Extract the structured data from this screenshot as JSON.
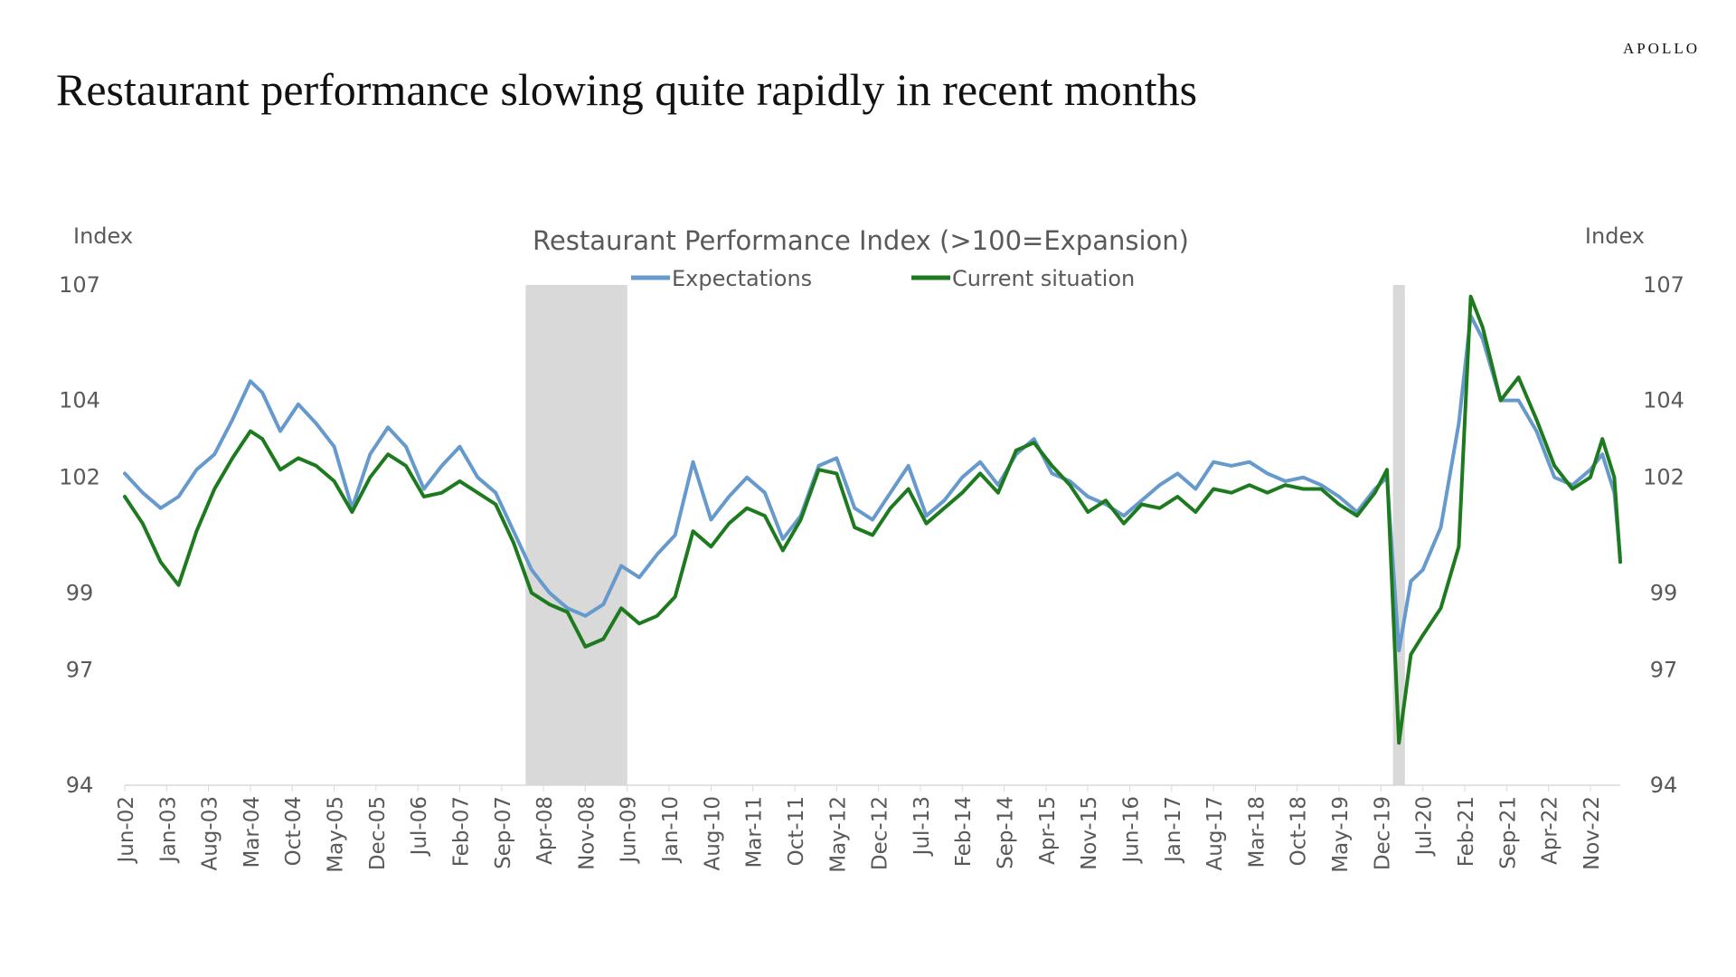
{
  "brand": "APOLLO",
  "headline": "Restaurant performance slowing quite rapidly in recent months",
  "chart_data": {
    "type": "line",
    "title": "Restaurant Performance Index (>100=Expansion)",
    "ylabel_left": "Index",
    "ylabel_right": "Index",
    "ylim": [
      94,
      107
    ],
    "yticks": [
      94,
      97,
      99,
      102,
      104,
      107
    ],
    "x_start": "2002-06",
    "x_end": "2023-04",
    "xtick_labels": [
      "Jun-02",
      "Jan-03",
      "Aug-03",
      "Mar-04",
      "Oct-04",
      "May-05",
      "Dec-05",
      "Jul-06",
      "Feb-07",
      "Sep-07",
      "Apr-08",
      "Nov-08",
      "Jun-09",
      "Jan-10",
      "Aug-10",
      "Mar-11",
      "Oct-11",
      "May-12",
      "Dec-12",
      "Jul-13",
      "Feb-14",
      "Sep-14",
      "Apr-15",
      "Nov-15",
      "Jun-16",
      "Jan-17",
      "Aug-17",
      "Mar-18",
      "Oct-18",
      "May-19",
      "Dec-19",
      "Jul-20",
      "Feb-21",
      "Sep-21",
      "Apr-22",
      "Nov-22"
    ],
    "recessions": [
      [
        "2008-01",
        "2009-06"
      ],
      [
        "2020-02",
        "2020-04"
      ]
    ],
    "colors": {
      "Expectations": "#6699cc",
      "Current situation": "#1e7a1e",
      "recession": "#d9d9d9"
    },
    "legend_position": "top-center",
    "series": [
      {
        "name": "Expectations",
        "values": [
          [
            2002,
            6,
            102.1
          ],
          [
            2002,
            9,
            101.6
          ],
          [
            2002,
            12,
            101.2
          ],
          [
            2003,
            3,
            101.5
          ],
          [
            2003,
            6,
            102.2
          ],
          [
            2003,
            9,
            102.6
          ],
          [
            2003,
            12,
            103.5
          ],
          [
            2004,
            3,
            104.5
          ],
          [
            2004,
            5,
            104.2
          ],
          [
            2004,
            8,
            103.2
          ],
          [
            2004,
            11,
            103.9
          ],
          [
            2005,
            2,
            103.4
          ],
          [
            2005,
            5,
            102.8
          ],
          [
            2005,
            8,
            101.2
          ],
          [
            2005,
            11,
            102.6
          ],
          [
            2006,
            2,
            103.3
          ],
          [
            2006,
            5,
            102.8
          ],
          [
            2006,
            8,
            101.7
          ],
          [
            2006,
            11,
            102.3
          ],
          [
            2007,
            2,
            102.8
          ],
          [
            2007,
            5,
            102.0
          ],
          [
            2007,
            8,
            101.6
          ],
          [
            2007,
            11,
            100.6
          ],
          [
            2008,
            2,
            99.6
          ],
          [
            2008,
            5,
            99.0
          ],
          [
            2008,
            8,
            98.6
          ],
          [
            2008,
            11,
            98.4
          ],
          [
            2009,
            2,
            98.7
          ],
          [
            2009,
            5,
            99.7
          ],
          [
            2009,
            8,
            99.4
          ],
          [
            2009,
            11,
            100.0
          ],
          [
            2010,
            2,
            100.5
          ],
          [
            2010,
            5,
            102.4
          ],
          [
            2010,
            8,
            100.9
          ],
          [
            2010,
            11,
            101.5
          ],
          [
            2011,
            2,
            102.0
          ],
          [
            2011,
            5,
            101.6
          ],
          [
            2011,
            8,
            100.4
          ],
          [
            2011,
            11,
            101.0
          ],
          [
            2012,
            2,
            102.3
          ],
          [
            2012,
            5,
            102.5
          ],
          [
            2012,
            8,
            101.2
          ],
          [
            2012,
            11,
            100.9
          ],
          [
            2013,
            2,
            101.6
          ],
          [
            2013,
            5,
            102.3
          ],
          [
            2013,
            8,
            101.0
          ],
          [
            2013,
            11,
            101.4
          ],
          [
            2014,
            2,
            102.0
          ],
          [
            2014,
            5,
            102.4
          ],
          [
            2014,
            8,
            101.8
          ],
          [
            2014,
            11,
            102.6
          ],
          [
            2015,
            2,
            103.0
          ],
          [
            2015,
            5,
            102.1
          ],
          [
            2015,
            8,
            101.9
          ],
          [
            2015,
            11,
            101.5
          ],
          [
            2016,
            2,
            101.3
          ],
          [
            2016,
            5,
            101.0
          ],
          [
            2016,
            8,
            101.4
          ],
          [
            2016,
            11,
            101.8
          ],
          [
            2017,
            2,
            102.1
          ],
          [
            2017,
            5,
            101.7
          ],
          [
            2017,
            8,
            102.4
          ],
          [
            2017,
            11,
            102.3
          ],
          [
            2018,
            2,
            102.4
          ],
          [
            2018,
            5,
            102.1
          ],
          [
            2018,
            8,
            101.9
          ],
          [
            2018,
            11,
            102.0
          ],
          [
            2019,
            2,
            101.8
          ],
          [
            2019,
            5,
            101.5
          ],
          [
            2019,
            8,
            101.1
          ],
          [
            2019,
            11,
            101.7
          ],
          [
            2020,
            1,
            102.0
          ],
          [
            2020,
            3,
            97.5
          ],
          [
            2020,
            5,
            99.3
          ],
          [
            2020,
            7,
            99.6
          ],
          [
            2020,
            10,
            100.7
          ],
          [
            2021,
            1,
            103.4
          ],
          [
            2021,
            3,
            106.2
          ],
          [
            2021,
            5,
            105.6
          ],
          [
            2021,
            8,
            104.0
          ],
          [
            2021,
            11,
            104.0
          ],
          [
            2022,
            2,
            103.2
          ],
          [
            2022,
            5,
            102.0
          ],
          [
            2022,
            8,
            101.8
          ],
          [
            2022,
            11,
            102.2
          ],
          [
            2023,
            1,
            102.6
          ],
          [
            2023,
            3,
            101.6
          ],
          [
            2023,
            4,
            99.9
          ]
        ]
      },
      {
        "name": "Current situation",
        "values": [
          [
            2002,
            6,
            101.5
          ],
          [
            2002,
            9,
            100.8
          ],
          [
            2002,
            12,
            99.8
          ],
          [
            2003,
            3,
            99.2
          ],
          [
            2003,
            6,
            100.6
          ],
          [
            2003,
            9,
            101.7
          ],
          [
            2003,
            12,
            102.5
          ],
          [
            2004,
            3,
            103.2
          ],
          [
            2004,
            5,
            103.0
          ],
          [
            2004,
            8,
            102.2
          ],
          [
            2004,
            11,
            102.5
          ],
          [
            2005,
            2,
            102.3
          ],
          [
            2005,
            5,
            101.9
          ],
          [
            2005,
            8,
            101.1
          ],
          [
            2005,
            11,
            102.0
          ],
          [
            2006,
            2,
            102.6
          ],
          [
            2006,
            5,
            102.3
          ],
          [
            2006,
            8,
            101.5
          ],
          [
            2006,
            11,
            101.6
          ],
          [
            2007,
            2,
            101.9
          ],
          [
            2007,
            5,
            101.6
          ],
          [
            2007,
            8,
            101.3
          ],
          [
            2007,
            11,
            100.3
          ],
          [
            2008,
            2,
            99.0
          ],
          [
            2008,
            5,
            98.7
          ],
          [
            2008,
            8,
            98.5
          ],
          [
            2008,
            11,
            97.6
          ],
          [
            2009,
            2,
            97.8
          ],
          [
            2009,
            5,
            98.6
          ],
          [
            2009,
            8,
            98.2
          ],
          [
            2009,
            11,
            98.4
          ],
          [
            2010,
            2,
            98.9
          ],
          [
            2010,
            5,
            100.6
          ],
          [
            2010,
            8,
            100.2
          ],
          [
            2010,
            11,
            100.8
          ],
          [
            2011,
            2,
            101.2
          ],
          [
            2011,
            5,
            101.0
          ],
          [
            2011,
            8,
            100.1
          ],
          [
            2011,
            11,
            100.9
          ],
          [
            2012,
            2,
            102.2
          ],
          [
            2012,
            5,
            102.1
          ],
          [
            2012,
            8,
            100.7
          ],
          [
            2012,
            11,
            100.5
          ],
          [
            2013,
            2,
            101.2
          ],
          [
            2013,
            5,
            101.7
          ],
          [
            2013,
            8,
            100.8
          ],
          [
            2013,
            11,
            101.2
          ],
          [
            2014,
            2,
            101.6
          ],
          [
            2014,
            5,
            102.1
          ],
          [
            2014,
            8,
            101.6
          ],
          [
            2014,
            11,
            102.7
          ],
          [
            2015,
            2,
            102.9
          ],
          [
            2015,
            5,
            102.3
          ],
          [
            2015,
            8,
            101.8
          ],
          [
            2015,
            11,
            101.1
          ],
          [
            2016,
            2,
            101.4
          ],
          [
            2016,
            5,
            100.8
          ],
          [
            2016,
            8,
            101.3
          ],
          [
            2016,
            11,
            101.2
          ],
          [
            2017,
            2,
            101.5
          ],
          [
            2017,
            5,
            101.1
          ],
          [
            2017,
            8,
            101.7
          ],
          [
            2017,
            11,
            101.6
          ],
          [
            2018,
            2,
            101.8
          ],
          [
            2018,
            5,
            101.6
          ],
          [
            2018,
            8,
            101.8
          ],
          [
            2018,
            11,
            101.7
          ],
          [
            2019,
            2,
            101.7
          ],
          [
            2019,
            5,
            101.3
          ],
          [
            2019,
            8,
            101.0
          ],
          [
            2019,
            11,
            101.6
          ],
          [
            2020,
            1,
            102.2
          ],
          [
            2020,
            3,
            95.1
          ],
          [
            2020,
            5,
            97.4
          ],
          [
            2020,
            7,
            97.9
          ],
          [
            2020,
            10,
            98.6
          ],
          [
            2021,
            1,
            100.2
          ],
          [
            2021,
            3,
            106.7
          ],
          [
            2021,
            5,
            105.9
          ],
          [
            2021,
            8,
            104.0
          ],
          [
            2021,
            11,
            104.6
          ],
          [
            2022,
            2,
            103.5
          ],
          [
            2022,
            5,
            102.3
          ],
          [
            2022,
            8,
            101.7
          ],
          [
            2022,
            11,
            102.0
          ],
          [
            2023,
            1,
            103.0
          ],
          [
            2023,
            3,
            102.0
          ],
          [
            2023,
            4,
            99.8
          ]
        ]
      }
    ]
  }
}
